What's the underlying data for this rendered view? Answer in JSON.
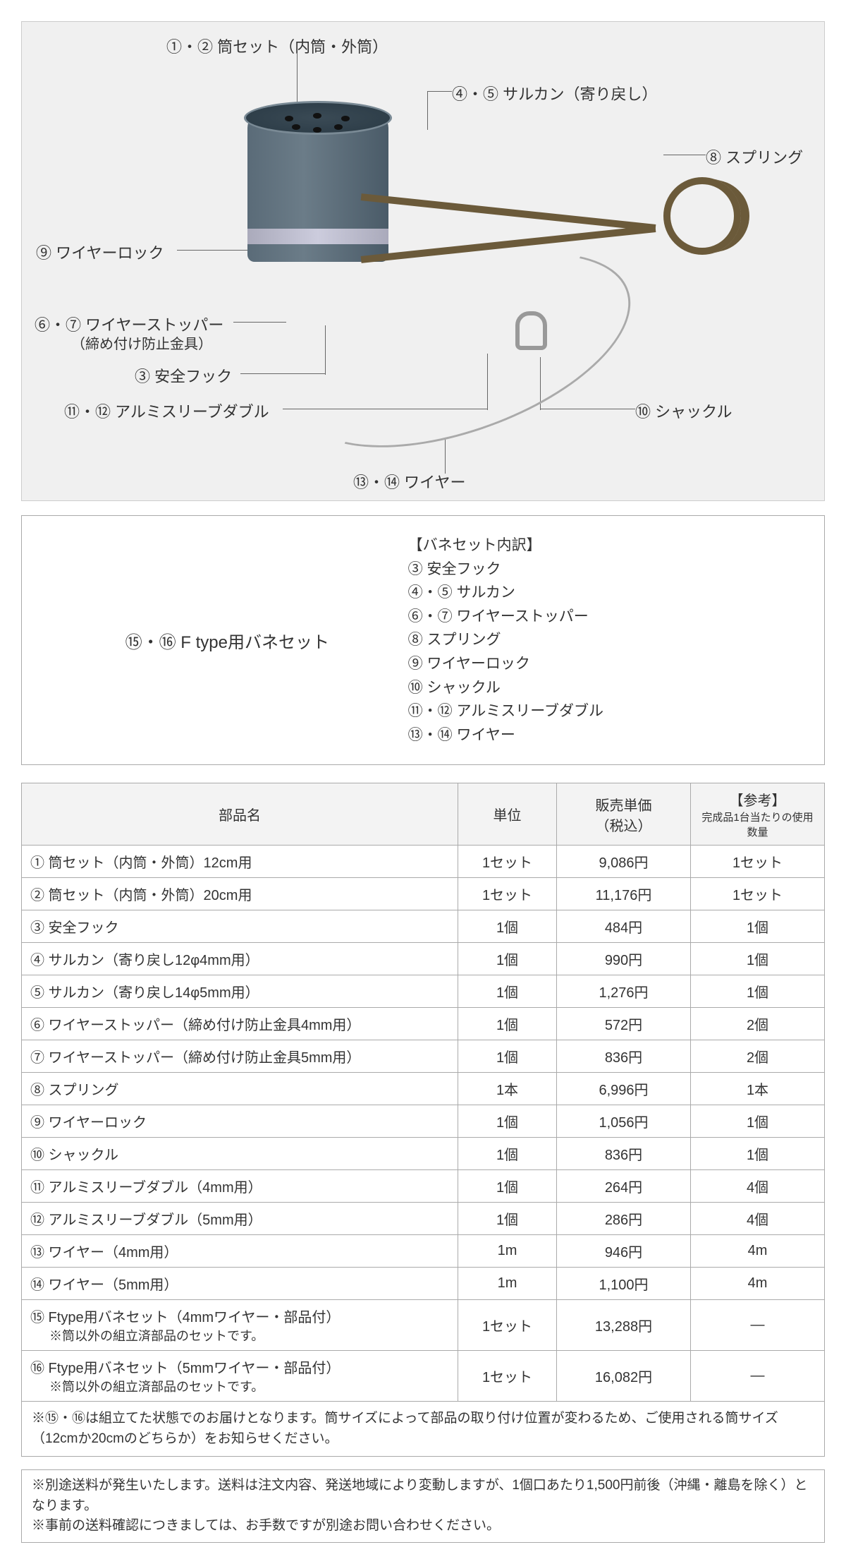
{
  "colors": {
    "page_bg": "#ffffff",
    "diagram_bg": "#f0f0f0",
    "border": "#aaaaaa",
    "header_bg": "#f3f3f3",
    "text": "#333333",
    "cup": "#5a6b78",
    "spring": "#6b5a3a",
    "wire": "#aaaaaa"
  },
  "diagram": {
    "labels": {
      "tube_set": "①・② 筒セット（内筒・外筒）",
      "swivel": "④・⑤ サルカン（寄り戻し）",
      "spring": "⑧ スプリング",
      "wire_lock": "⑨ ワイヤーロック",
      "stopper1": "⑥・⑦ ワイヤーストッパー",
      "stopper2": "（締め付け防止金具）",
      "hook": "③ 安全フック",
      "sleeve": "⑪・⑫ アルミスリーブダブル",
      "shackle": "⑩ シャックル",
      "wire": "⑬・⑭ ワイヤー"
    }
  },
  "spring_set": {
    "title": "⑮・⑯ F type用バネセット",
    "heading": "【バネセット内訳】",
    "items": [
      "③ 安全フック",
      "④・⑤ サルカン",
      "⑥・⑦ ワイヤーストッパー",
      "⑧ スプリング",
      "⑨ ワイヤーロック",
      "⑩ シャックル",
      "⑪・⑫ アルミスリーブダブル",
      "⑬・⑭ ワイヤー"
    ]
  },
  "table": {
    "headers": {
      "name": "部品名",
      "unit": "単位",
      "price": "販売単価\n（税込）",
      "ref": "【参考】",
      "ref_sub": "完成品1台当たりの使用数量"
    },
    "rows": [
      {
        "name": "① 筒セット（内筒・外筒）12cm用",
        "unit": "1セット",
        "price": "9,086円",
        "qty": "1セット"
      },
      {
        "name": "② 筒セット（内筒・外筒）20cm用",
        "unit": "1セット",
        "price": "11,176円",
        "qty": "1セット"
      },
      {
        "name": "③ 安全フック",
        "unit": "1個",
        "price": "484円",
        "qty": "1個"
      },
      {
        "name": "④ サルカン（寄り戻し12φ4mm用）",
        "unit": "1個",
        "price": "990円",
        "qty": "1個"
      },
      {
        "name": "⑤ サルカン（寄り戻し14φ5mm用）",
        "unit": "1個",
        "price": "1,276円",
        "qty": "1個"
      },
      {
        "name": "⑥ ワイヤーストッパー（締め付け防止金具4mm用）",
        "unit": "1個",
        "price": "572円",
        "qty": "2個"
      },
      {
        "name": "⑦ ワイヤーストッパー（締め付け防止金具5mm用）",
        "unit": "1個",
        "price": "836円",
        "qty": "2個"
      },
      {
        "name": "⑧ スプリング",
        "unit": "1本",
        "price": "6,996円",
        "qty": "1本"
      },
      {
        "name": "⑨ ワイヤーロック",
        "unit": "1個",
        "price": "1,056円",
        "qty": "1個"
      },
      {
        "name": "⑩ シャックル",
        "unit": "1個",
        "price": "836円",
        "qty": "1個"
      },
      {
        "name": "⑪ アルミスリーブダブル（4mm用）",
        "unit": "1個",
        "price": "264円",
        "qty": "4個"
      },
      {
        "name": "⑫ アルミスリーブダブル（5mm用）",
        "unit": "1個",
        "price": "286円",
        "qty": "4個"
      },
      {
        "name": "⑬ ワイヤー（4mm用）",
        "unit": "1m",
        "price": "946円",
        "qty": "4m"
      },
      {
        "name": "⑭ ワイヤー（5mm用）",
        "unit": "1m",
        "price": "1,100円",
        "qty": "4m"
      },
      {
        "name": "⑮ Ftype用バネセット（4mmワイヤー・部品付）",
        "note": "※筒以外の組立済部品のセットです。",
        "unit": "1セット",
        "price": "13,288円",
        "qty": "―"
      },
      {
        "name": "⑯ Ftype用バネセット（5mmワイヤー・部品付）",
        "note": "※筒以外の組立済部品のセットです。",
        "unit": "1セット",
        "price": "16,082円",
        "qty": "―"
      }
    ],
    "footnote": "※⑮・⑯は組立てた状態でのお届けとなります。筒サイズによって部品の取り付け位置が変わるため、ご使用される筒サイズ（12cmか20cmのどちらか）をお知らせください。"
  },
  "shipping_note": {
    "line1": "※別途送料が発生いたします。送料は注文内容、発送地域により変動しますが、1個口あたり1,500円前後（沖縄・離島を除く）となります。",
    "line2": "※事前の送料確認につきましては、お手数ですが別途お問い合わせください。"
  }
}
